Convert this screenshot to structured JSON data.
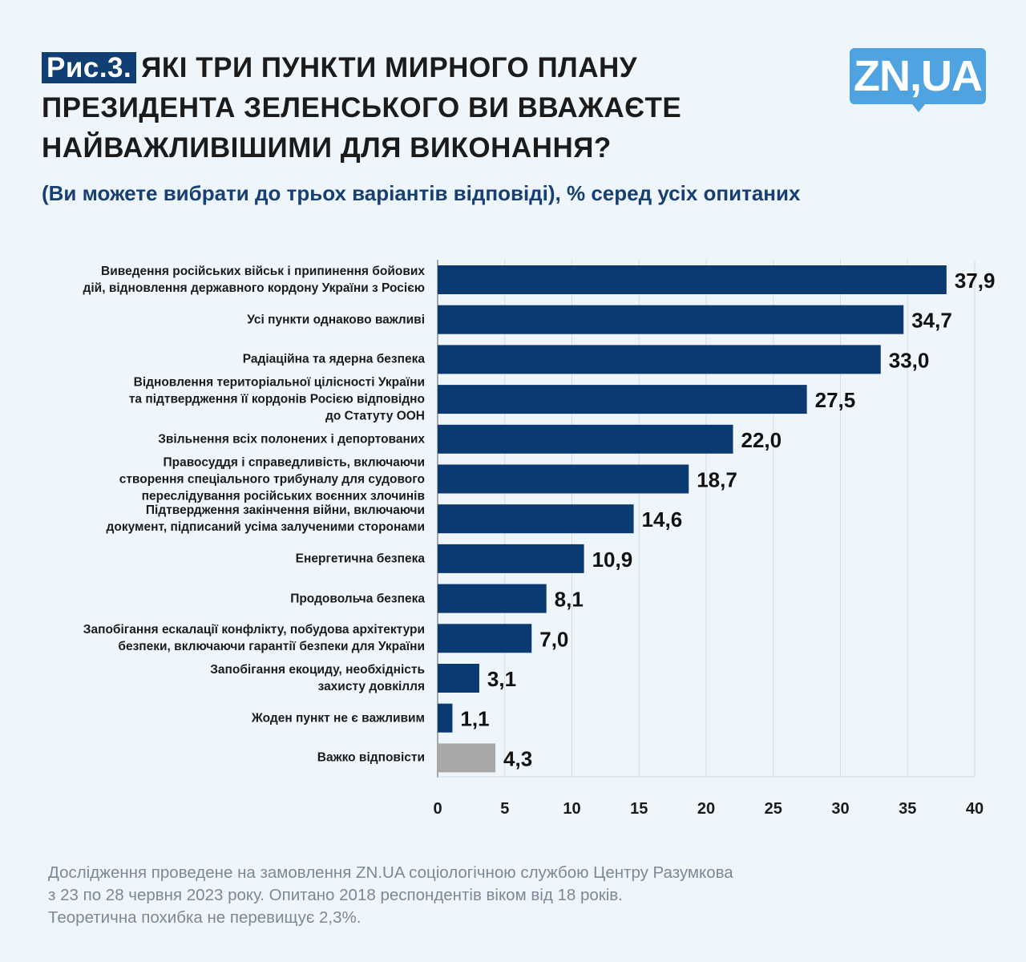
{
  "header": {
    "figure_label": "Рис.3.",
    "title": "ЯКІ ТРИ ПУНКТИ МИРНОГО ПЛАНУ ПРЕЗИДЕНТА ЗЕЛЕНСЬКОГО ВИ ВВАЖАЄТЕ НАЙВАЖЛИВІШИМИ ДЛЯ ВИКОНАННЯ?",
    "subtitle": "(Ви можете вибрати до трьох варіантів відповіді), % серед усіх опитаних",
    "logo": "ZN,UA"
  },
  "chart_data": {
    "type": "bar",
    "orientation": "horizontal",
    "title": "Які три пункти мирного плану Президента Зеленського ви вважаєте найважливішими для виконання?",
    "xlabel": "",
    "ylabel": "",
    "xlim": [
      0,
      40
    ],
    "ticks": [
      0,
      5,
      10,
      15,
      20,
      25,
      30,
      35,
      40
    ],
    "grid": true,
    "categories": [
      "Виведення російських військ і припинення бойових дій, відновлення державного кордону України з Росією",
      "Усі пункти однаково важливі",
      "Радіаційна та ядерна безпека",
      "Відновлення територіальної цілісності України та підтвердження її кордонів Росією відповідно до Статуту ООН",
      "Звільнення всіх полонених і депортованих",
      "Правосуддя і справедливість, включаючи створення спеціального трибуналу для судового переслідування російських воєнних злочинів",
      "Підтвердження закінчення війни, включаючи документ, підписаний усіма залученими сторонами",
      "Енергетична безпека",
      "Продовольча безпека",
      "Запобігання ескалації конфлікту, побудова архітектури безпеки, включаючи гарантії безпеки для України",
      "Запобігання екоциду, необхідність захисту довкілля",
      "Жоден пункт не є важливим",
      "Важко відповісти"
    ],
    "label_lines": [
      [
        "Виведення російських військ і припинення бойових",
        "дій, відновлення державного кордону України з Росією"
      ],
      [
        "Усі пункти однаково важливі"
      ],
      [
        "Радіаційна та ядерна безпека"
      ],
      [
        "Відновлення територіальної цілісності України",
        "та підтвердження її кордонів Росією відповідно",
        "до Статуту ООН"
      ],
      [
        "Звільнення всіх полонених і депортованих"
      ],
      [
        "Правосуддя і справедливість, включаючи",
        "створення спеціального трибуналу для судового",
        "переслідування російських воєнних злочинів"
      ],
      [
        "Підтвердження закінчення війни, включаючи",
        "документ, підписаний усіма залученими сторонами"
      ],
      [
        "Енергетична безпека"
      ],
      [
        "Продовольча безпека"
      ],
      [
        "Запобігання ескалації конфлікту, побудова архітектури",
        "безпеки, включаючи гарантії безпеки для України"
      ],
      [
        "Запобігання екоциду, необхідність",
        "захисту довкілля"
      ],
      [
        "Жоден пункт не є важливим"
      ],
      [
        "Важко відповісти"
      ]
    ],
    "values": [
      37.9,
      34.7,
      33.0,
      27.5,
      22.0,
      18.7,
      14.6,
      10.9,
      8.1,
      7.0,
      3.1,
      1.1,
      4.3
    ],
    "value_labels": [
      "37,9",
      "34,7",
      "33,0",
      "27,5",
      "22,0",
      "18,7",
      "14,6",
      "10,9",
      "8,1",
      "7,0",
      "3,1",
      "1,1",
      "4,3"
    ],
    "colors": [
      "#0b3a72",
      "#0b3a72",
      "#0b3a72",
      "#0b3a72",
      "#0b3a72",
      "#0b3a72",
      "#0b3a72",
      "#0b3a72",
      "#0b3a72",
      "#0b3a72",
      "#0b3a72",
      "#0b3a72",
      "#a8a8a8"
    ]
  },
  "footer": {
    "lines": [
      "Дослідження проведене на замовлення ZN.UA соціологічною службою Центру Разумкова",
      "з 23 по 28 червня 2023 року. Опитано 2018 респондентів віком від 18 років.",
      "Теоретична похибка не перевищує 2,3%."
    ]
  }
}
